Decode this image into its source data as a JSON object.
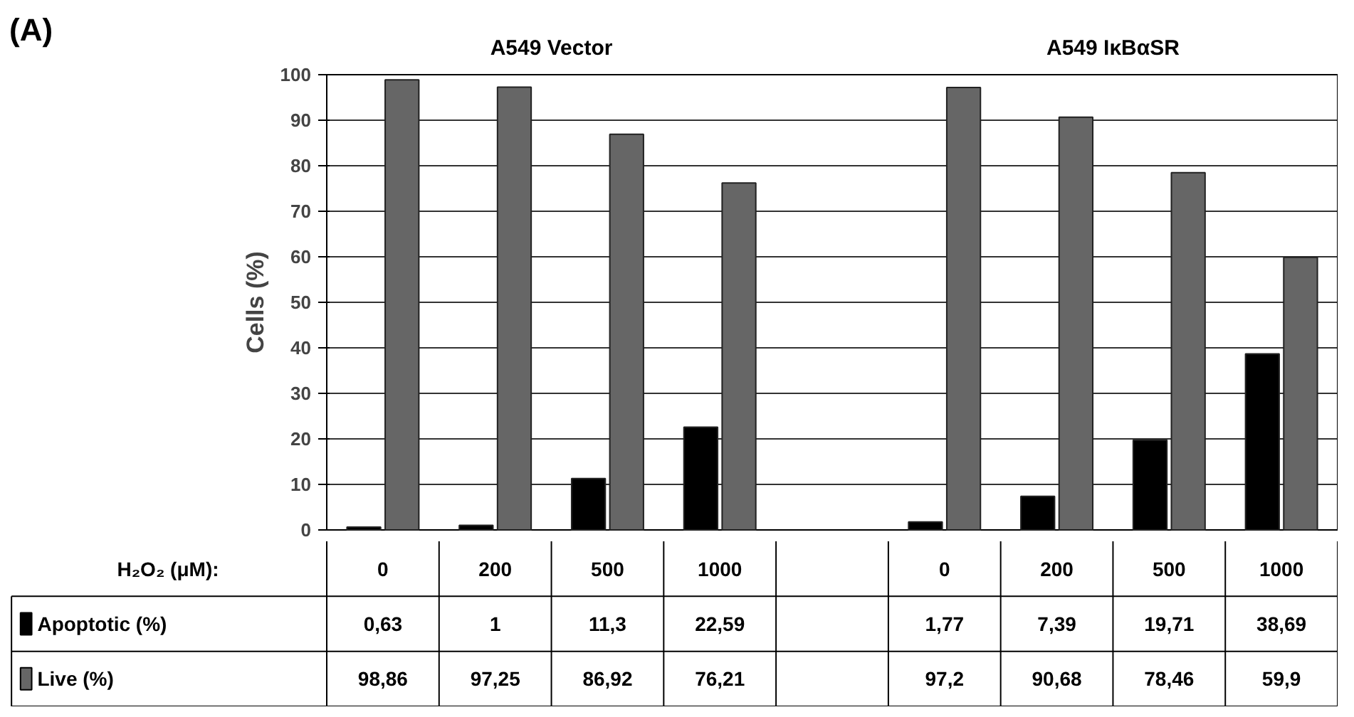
{
  "chart_data": {
    "type": "bar",
    "ylabel": "Cells (%)",
    "xlabel": "H₂O₂ (μM):",
    "annotations": [
      "(A)",
      "A549 Vector",
      "A549 IκBαSR"
    ],
    "categories": [
      "0",
      "200",
      "500",
      "1000",
      null,
      "0",
      "200",
      "500",
      "1000"
    ],
    "series": [
      {
        "name": "Apoptotic (%)",
        "color": "#000000",
        "values": [
          0.63,
          1,
          11.3,
          22.59,
          null,
          1.77,
          7.39,
          19.71,
          38.69
        ],
        "value_labels": [
          "0,63",
          "1",
          "11,3",
          "22,59",
          null,
          "1,77",
          "7,39",
          "19,71",
          "38,69"
        ]
      },
      {
        "name": "Live (%)",
        "color": "#666666",
        "values": [
          98.86,
          97.25,
          86.92,
          76.21,
          null,
          97.2,
          90.68,
          78.46,
          59.9
        ],
        "value_labels": [
          "98,86",
          "97,25",
          "86,92",
          "76,21",
          null,
          "97,2",
          "90,68",
          "78,46",
          "59,9"
        ]
      }
    ],
    "ylim": [
      0,
      100
    ],
    "yticks": [
      0,
      10,
      20,
      30,
      40,
      50,
      60,
      70,
      80,
      90,
      100
    ],
    "grid": "y",
    "legend": "bottom left"
  }
}
